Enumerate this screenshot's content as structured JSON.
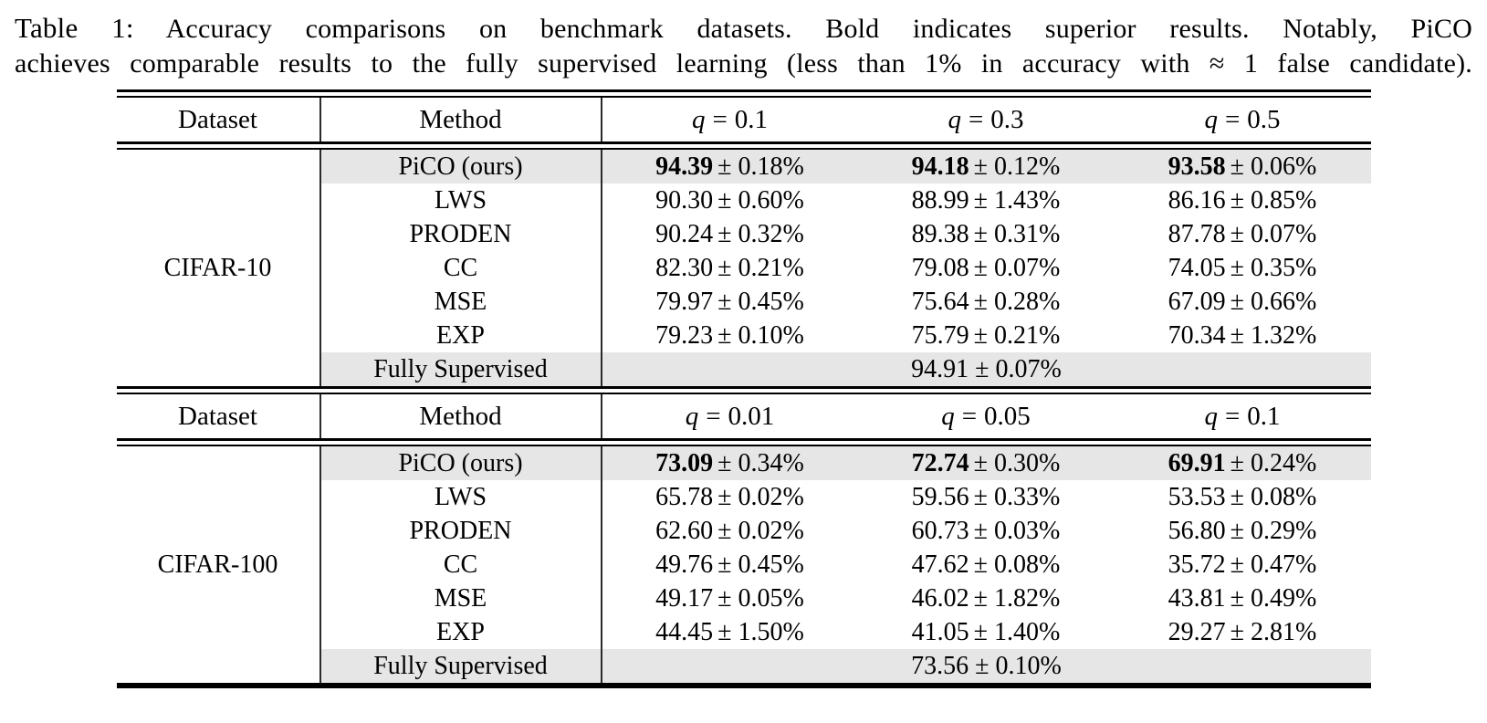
{
  "caption": {
    "label": "Table 1:",
    "line1": "Accuracy comparisons on benchmark datasets.  Bold indicates superior results.  Notably, PiCO",
    "line2": "achieves comparable results to the fully supervised learning (less than 1% in accuracy with ≈ 1 false candidate)."
  },
  "colors": {
    "row_highlight": "#e6e6e6",
    "rule": "#000000",
    "column_divider": "#2a2a2a",
    "text": "#000000"
  },
  "sections": [
    {
      "dataset": "CIFAR-10",
      "header": {
        "dataset": "Dataset",
        "method": "Method",
        "q_var": "q",
        "eq": "=",
        "q_values": [
          "0.1",
          "0.3",
          "0.5"
        ]
      },
      "rows": [
        {
          "method": "PiCO (ours)",
          "highlight": true,
          "cells": [
            {
              "mean": "94.39",
              "pm": "± 0.18%"
            },
            {
              "mean": "94.18",
              "pm": "± 0.12%"
            },
            {
              "mean": "93.58",
              "pm": "± 0.06%"
            }
          ]
        },
        {
          "method": "LWS",
          "highlight": false,
          "cells": [
            {
              "mean": "90.30",
              "pm": "± 0.60%"
            },
            {
              "mean": "88.99",
              "pm": "± 1.43%"
            },
            {
              "mean": "86.16",
              "pm": "± 0.85%"
            }
          ]
        },
        {
          "method": "PRODEN",
          "highlight": false,
          "cells": [
            {
              "mean": "90.24",
              "pm": "± 0.32%"
            },
            {
              "mean": "89.38",
              "pm": "± 0.31%"
            },
            {
              "mean": "87.78",
              "pm": "± 0.07%"
            }
          ]
        },
        {
          "method": "CC",
          "highlight": false,
          "cells": [
            {
              "mean": "82.30",
              "pm": "± 0.21%"
            },
            {
              "mean": "79.08",
              "pm": "± 0.07%"
            },
            {
              "mean": "74.05",
              "pm": "± 0.35%"
            }
          ]
        },
        {
          "method": "MSE",
          "highlight": false,
          "cells": [
            {
              "mean": "79.97",
              "pm": "± 0.45%"
            },
            {
              "mean": "75.64",
              "pm": "± 0.28%"
            },
            {
              "mean": "67.09",
              "pm": "± 0.66%"
            }
          ]
        },
        {
          "method": "EXP",
          "highlight": false,
          "cells": [
            {
              "mean": "79.23",
              "pm": "± 0.10%"
            },
            {
              "mean": "75.79",
              "pm": "± 0.21%"
            },
            {
              "mean": "70.34",
              "pm": "± 1.32%"
            }
          ]
        }
      ],
      "supervised": {
        "method": "Fully Supervised",
        "value": "94.91 ± 0.07%"
      }
    },
    {
      "dataset": "CIFAR-100",
      "header": {
        "dataset": "Dataset",
        "method": "Method",
        "q_var": "q",
        "eq": "=",
        "q_values": [
          "0.01",
          "0.05",
          "0.1"
        ]
      },
      "rows": [
        {
          "method": "PiCO (ours)",
          "highlight": true,
          "cells": [
            {
              "mean": "73.09",
              "pm": "± 0.34%"
            },
            {
              "mean": "72.74",
              "pm": "± 0.30%"
            },
            {
              "mean": "69.91",
              "pm": "± 0.24%"
            }
          ]
        },
        {
          "method": "LWS",
          "highlight": false,
          "cells": [
            {
              "mean": "65.78",
              "pm": "± 0.02%"
            },
            {
              "mean": "59.56",
              "pm": "± 0.33%"
            },
            {
              "mean": "53.53",
              "pm": "± 0.08%"
            }
          ]
        },
        {
          "method": "PRODEN",
          "highlight": false,
          "cells": [
            {
              "mean": "62.60",
              "pm": "± 0.02%"
            },
            {
              "mean": "60.73",
              "pm": "± 0.03%"
            },
            {
              "mean": "56.80",
              "pm": "± 0.29%"
            }
          ]
        },
        {
          "method": "CC",
          "highlight": false,
          "cells": [
            {
              "mean": "49.76",
              "pm": "± 0.45%"
            },
            {
              "mean": "47.62",
              "pm": "± 0.08%"
            },
            {
              "mean": "35.72",
              "pm": "± 0.47%"
            }
          ]
        },
        {
          "method": "MSE",
          "highlight": false,
          "cells": [
            {
              "mean": "49.17",
              "pm": "± 0.05%"
            },
            {
              "mean": "46.02",
              "pm": "± 1.82%"
            },
            {
              "mean": "43.81",
              "pm": "± 0.49%"
            }
          ]
        },
        {
          "method": "EXP",
          "highlight": false,
          "cells": [
            {
              "mean": "44.45",
              "pm": "± 1.50%"
            },
            {
              "mean": "41.05",
              "pm": "± 1.40%"
            },
            {
              "mean": "29.27",
              "pm": "± 2.81%"
            }
          ]
        }
      ],
      "supervised": {
        "method": "Fully Supervised",
        "value": "73.56 ± 0.10%"
      }
    }
  ]
}
